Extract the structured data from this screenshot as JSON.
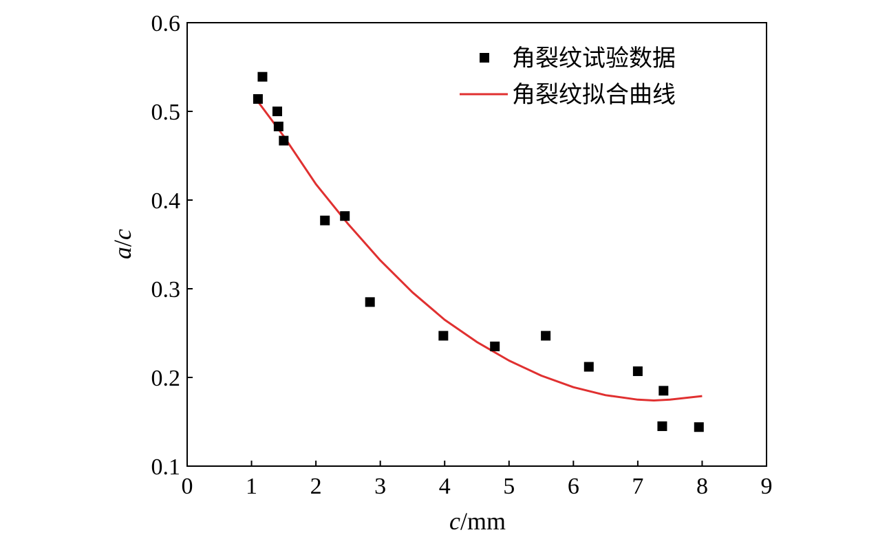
{
  "chart_data": {
    "type": "scatter",
    "xlabel": {
      "italic": "c",
      "unit": "/mm"
    },
    "ylabel": {
      "italic_a": "a",
      "slash": "/",
      "italic_c": "c"
    },
    "xlim": [
      0,
      9
    ],
    "ylim": [
      0.1,
      0.6
    ],
    "x_ticks": [
      "0",
      "1",
      "2",
      "3",
      "4",
      "5",
      "6",
      "7",
      "8",
      "9"
    ],
    "y_ticks": [
      "0.1",
      "0.2",
      "0.3",
      "0.4",
      "0.5",
      "0.6"
    ],
    "grid": false,
    "legend_position": "top-right",
    "legend": {
      "scatter_label": "角裂纹试验数据",
      "fit_label": "角裂纹拟合曲线"
    },
    "series": [
      {
        "name": "角裂纹试验数据",
        "kind": "scatter",
        "marker": "square",
        "color": "#000000",
        "points": [
          [
            1.1,
            0.514
          ],
          [
            1.17,
            0.539
          ],
          [
            1.4,
            0.5
          ],
          [
            1.42,
            0.483
          ],
          [
            1.5,
            0.467
          ],
          [
            2.14,
            0.377
          ],
          [
            2.45,
            0.382
          ],
          [
            2.84,
            0.285
          ],
          [
            3.98,
            0.247
          ],
          [
            4.78,
            0.235
          ],
          [
            5.57,
            0.247
          ],
          [
            6.24,
            0.212
          ],
          [
            7.0,
            0.207
          ],
          [
            7.4,
            0.185
          ],
          [
            7.38,
            0.145
          ],
          [
            7.95,
            0.144
          ]
        ]
      },
      {
        "name": "角裂纹拟合曲线",
        "kind": "line",
        "color": "#e03030",
        "points": [
          [
            1.1,
            0.511
          ],
          [
            1.5,
            0.472
          ],
          [
            2.0,
            0.418
          ],
          [
            2.5,
            0.373
          ],
          [
            3.0,
            0.332
          ],
          [
            3.5,
            0.296
          ],
          [
            4.0,
            0.265
          ],
          [
            4.5,
            0.24
          ],
          [
            5.0,
            0.219
          ],
          [
            5.5,
            0.202
          ],
          [
            6.0,
            0.189
          ],
          [
            6.5,
            0.18
          ],
          [
            7.0,
            0.175
          ],
          [
            7.25,
            0.174
          ],
          [
            7.5,
            0.175
          ],
          [
            8.0,
            0.179
          ]
        ]
      }
    ]
  }
}
